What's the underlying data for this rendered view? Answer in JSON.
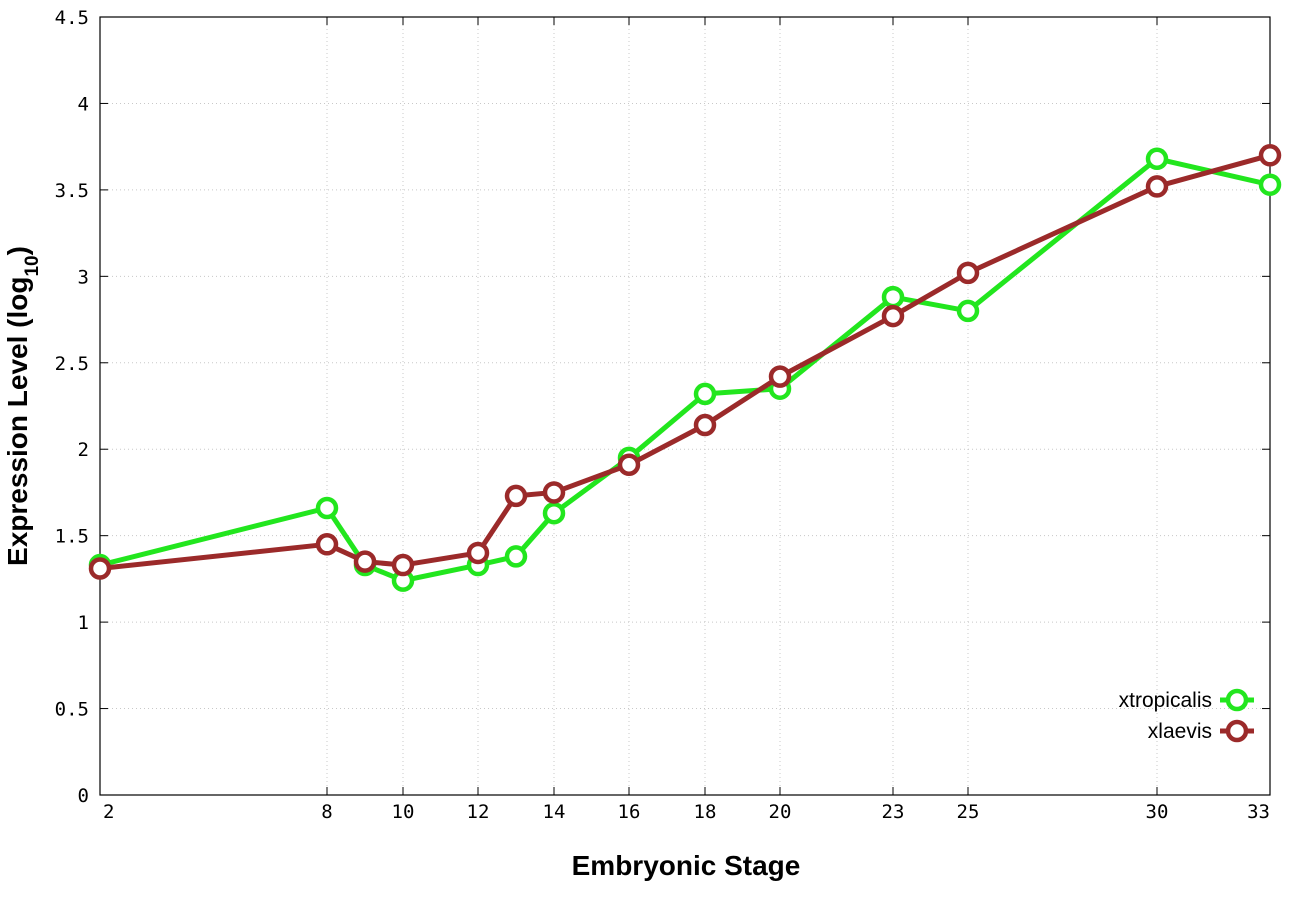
{
  "chart_data": {
    "type": "line",
    "xlabel": "Embryonic Stage",
    "ylabel": "Expression Level (log",
    "ylabel_sub": "10",
    "ylabel_end": ")",
    "x_ticks": [
      "2",
      "8",
      "10",
      "12",
      "14",
      "16",
      "18",
      "20",
      "23",
      "25",
      "30",
      "33"
    ],
    "y_ticks": [
      "0",
      "0.5",
      "1",
      "1.5",
      "2",
      "2.5",
      "3",
      "3.5",
      "4",
      "4.5"
    ],
    "ylim": [
      0,
      4.5
    ],
    "grid": true,
    "legend_position": "bottom-right",
    "series": [
      {
        "name": "xtropicalis",
        "color": "#22e61e",
        "points": [
          {
            "stage": "2",
            "y": 1.33
          },
          {
            "stage": "8",
            "y": 1.66
          },
          {
            "stage": "9",
            "y": 1.33
          },
          {
            "stage": "10",
            "y": 1.24
          },
          {
            "stage": "12",
            "y": 1.33
          },
          {
            "stage": "13",
            "y": 1.38
          },
          {
            "stage": "14",
            "y": 1.63
          },
          {
            "stage": "16",
            "y": 1.95
          },
          {
            "stage": "18",
            "y": 2.32
          },
          {
            "stage": "20",
            "y": 2.35
          },
          {
            "stage": "23",
            "y": 2.88
          },
          {
            "stage": "25",
            "y": 2.8
          },
          {
            "stage": "30",
            "y": 3.68
          },
          {
            "stage": "33",
            "y": 3.53
          }
        ]
      },
      {
        "name": "xlaevis",
        "color": "#9b2a2a",
        "points": [
          {
            "stage": "2",
            "y": 1.31
          },
          {
            "stage": "8",
            "y": 1.45
          },
          {
            "stage": "9",
            "y": 1.35
          },
          {
            "stage": "10",
            "y": 1.33
          },
          {
            "stage": "12",
            "y": 1.4
          },
          {
            "stage": "13",
            "y": 1.73
          },
          {
            "stage": "14",
            "y": 1.75
          },
          {
            "stage": "16",
            "y": 1.91
          },
          {
            "stage": "18",
            "y": 2.14
          },
          {
            "stage": "20",
            "y": 2.42
          },
          {
            "stage": "23",
            "y": 2.77
          },
          {
            "stage": "25",
            "y": 3.02
          },
          {
            "stage": "30",
            "y": 3.52
          },
          {
            "stage": "33",
            "y": 3.7
          }
        ]
      }
    ]
  }
}
